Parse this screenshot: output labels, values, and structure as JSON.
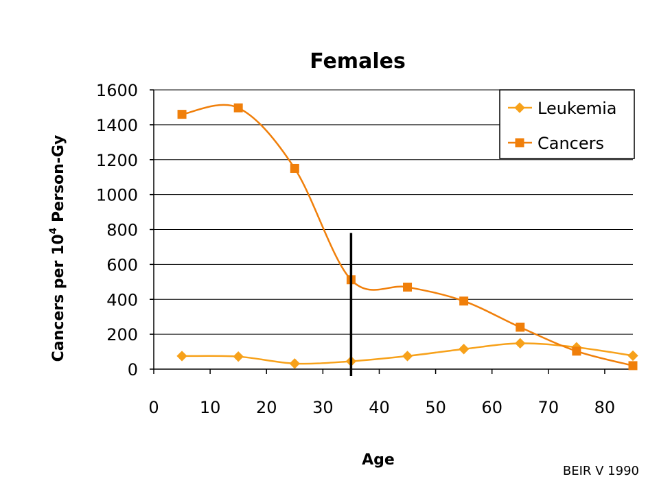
{
  "chart_data": {
    "type": "line",
    "title": "Females",
    "xlabel": "Age",
    "ylabel_parts": [
      "Cancers per 10",
      "4",
      " Person-Gy"
    ],
    "x": [
      5,
      15,
      25,
      35,
      45,
      55,
      65,
      75,
      85
    ],
    "xlim": [
      0,
      85
    ],
    "ylim": [
      0,
      1600
    ],
    "xticks": [
      0,
      10,
      20,
      30,
      40,
      50,
      60,
      70,
      80
    ],
    "yticks": [
      0,
      200,
      400,
      600,
      800,
      1000,
      1200,
      1400,
      1600
    ],
    "grid": true,
    "legend": "top-right",
    "series": [
      {
        "name": "Leukemia",
        "marker": "diamond",
        "color": "#F7A11A",
        "values": [
          75,
          72,
          32,
          45,
          75,
          115,
          148,
          125,
          77
        ]
      },
      {
        "name": "Cancers",
        "marker": "square",
        "color": "#F07F0A",
        "values": [
          1460,
          1497,
          1150,
          512,
          470,
          390,
          240,
          103,
          20
        ]
      }
    ],
    "reference_line": {
      "x": 35,
      "y_top": 780
    },
    "source": "BEIR V 1990"
  }
}
